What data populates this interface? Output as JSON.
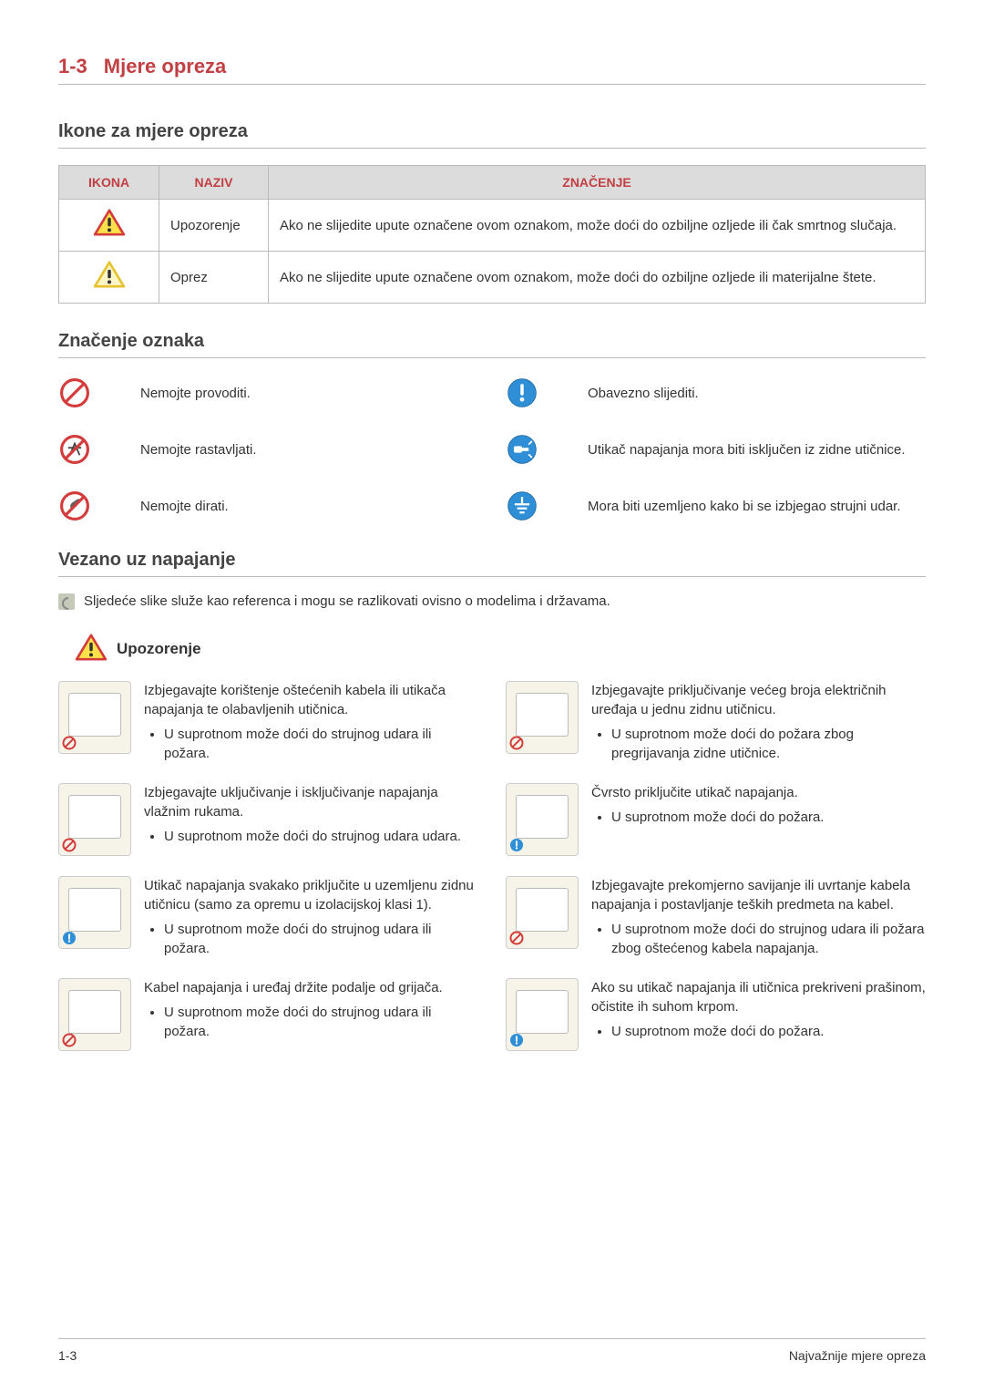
{
  "page": {
    "section_number": "1-3",
    "section_title": "Mjere opreza",
    "footer_left": "1-3",
    "footer_right": "Najvažnije mjere opreza"
  },
  "headings": {
    "icons_for_precaution": "Ikone za mjere opreza",
    "meaning_of_signs": "Značenje oznaka",
    "power_related": "Vezano uz napajanje"
  },
  "icon_table": {
    "headers": {
      "icon": "IKONA",
      "name": "NAZIV",
      "meaning": "ZNAČENJE"
    },
    "rows": [
      {
        "name": "Upozorenje",
        "meaning": "Ako ne slijedite upute označene ovom oznakom, može doći do ozbiljne ozljede ili čak smrtnog slučaja.",
        "border_color": "#d43b3b",
        "fill_color": "#ffe24a"
      },
      {
        "name": "Oprez",
        "meaning": "Ako ne slijedite upute označene ovom oznakom, može doći do ozbiljne ozljede ili materijalne štete.",
        "border_color": "#e5c22f",
        "fill_color": "#fff6c8"
      }
    ]
  },
  "signs": {
    "left": [
      {
        "kind": "prohibit",
        "label": "Nemojte provoditi."
      },
      {
        "kind": "no_disassemble",
        "label": "Nemojte rastavljati."
      },
      {
        "kind": "no_touch",
        "label": "Nemojte dirati."
      }
    ],
    "right": [
      {
        "kind": "must",
        "label": "Obavezno slijediti."
      },
      {
        "kind": "unplug",
        "label": "Utikač napajanja mora biti isključen iz zidne utičnice."
      },
      {
        "kind": "ground",
        "label": "Mora biti uzemljeno kako bi se izbjegao strujni udar."
      }
    ]
  },
  "power_note": "Sljedeće slike služe kao referenca i mogu se razlikovati ovisno o modelima i državama.",
  "warning_label": "Upozorenje",
  "power_items": {
    "left": [
      {
        "badge": "prohibit",
        "title": "Izbjegavajte korištenje oštećenih kabela ili utikača napajanja te olabavljenih utičnica.",
        "bullets": [
          "U suprotnom može doći do strujnog udara ili požara."
        ]
      },
      {
        "badge": "prohibit",
        "title": "Izbjegavajte uključivanje i isključivanje napajanja vlažnim rukama.",
        "bullets": [
          "U suprotnom može doći do strujnog udara udara."
        ]
      },
      {
        "badge": "must",
        "title": "Utikač napajanja svakako priključite u uzemljenu zidnu utičnicu (samo za opremu u izolacijskoj klasi 1).",
        "bullets": [
          "U suprotnom može doći do strujnog udara ili požara."
        ]
      },
      {
        "badge": "prohibit",
        "title": "Kabel napajanja i uređaj držite podalje od grijača.",
        "bullets": [
          "U suprotnom može doći do strujnog udara ili požara."
        ]
      }
    ],
    "right": [
      {
        "badge": "prohibit",
        "title": "Izbjegavajte priključivanje većeg broja električnih uređaja u jednu zidnu utičnicu.",
        "bullets": [
          "U suprotnom može doći do požara zbog pregrijavanja zidne utičnice."
        ]
      },
      {
        "badge": "must",
        "title": "Čvrsto priključite utikač napajanja.",
        "bullets": [
          "U suprotnom može doći do požara."
        ]
      },
      {
        "badge": "prohibit",
        "title": "Izbjegavajte prekomjerno savijanje ili uvrtanje kabela napajanja i postavljanje teških predmeta na kabel.",
        "bullets": [
          "U suprotnom može doći do strujnog udara ili požara zbog oštećenog kabela napajanja."
        ]
      },
      {
        "badge": "must",
        "title": "Ako su utikač napajanja ili utičnica prekriveni prašinom, očistite ih suhom krpom.",
        "bullets": [
          "U suprotnom može doći do požara."
        ]
      }
    ]
  },
  "colors": {
    "accent": "#c23f44",
    "prohibit": "#d43b3b",
    "must": "#2e8fd6",
    "must_dark": "#1f6aa6",
    "border": "#bbbbbb",
    "header_bg": "#dcdcdc",
    "thumb_bg": "#f6f4e8"
  }
}
